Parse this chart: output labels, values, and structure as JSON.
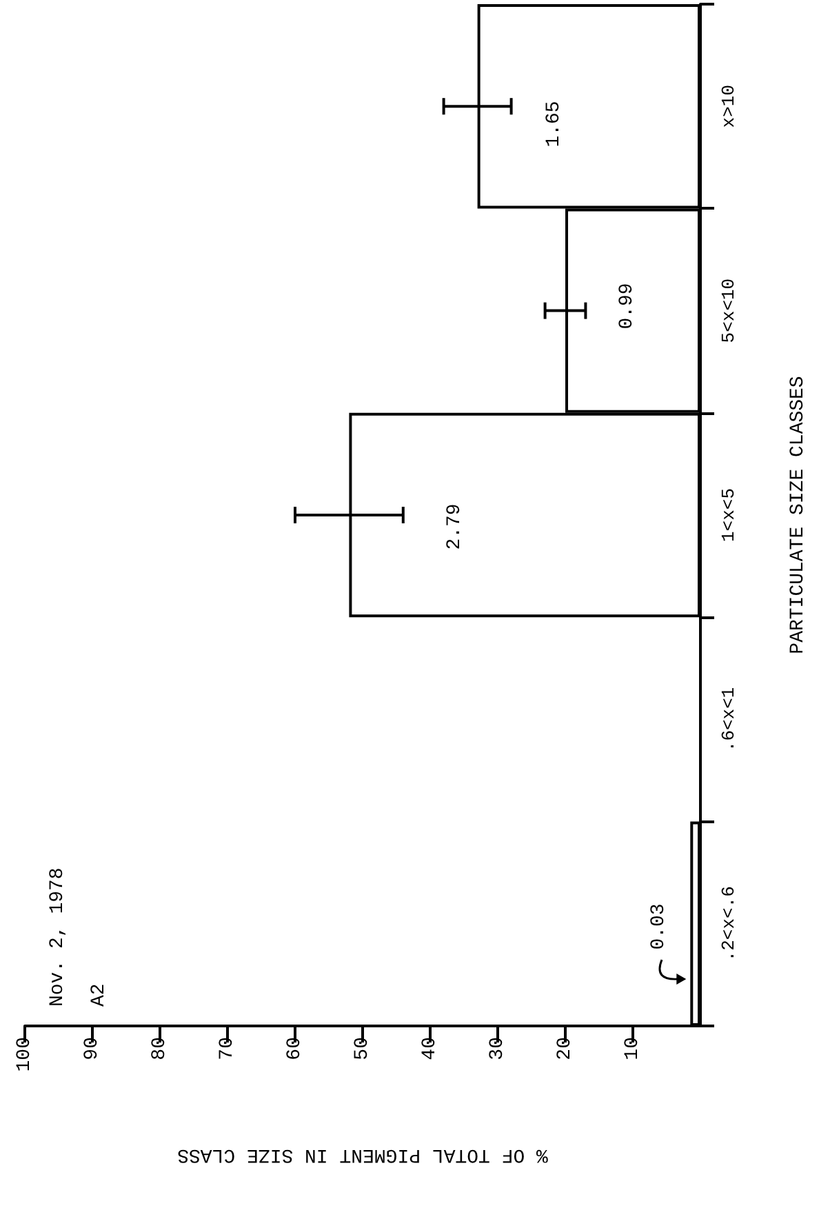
{
  "chart_data": {
    "type": "bar",
    "orientation": "horizontal",
    "xlabel": "% OF TOTAL PIGMENT IN SIZE CLASS",
    "ylabel": "PARTICULATE SIZE CLASSES",
    "categories": [
      "x>10",
      "5<x<10",
      "1<x<5",
      ".6<x<1",
      ".2<x<.6"
    ],
    "values": [
      33,
      20,
      52,
      0,
      1.5
    ],
    "errors": [
      [
        28,
        38
      ],
      [
        17,
        23
      ],
      [
        44,
        60
      ],
      null,
      null
    ],
    "color": "#000000",
    "xlim": [
      100,
      0
    ],
    "xticks": [
      100,
      90,
      80,
      70,
      60,
      50,
      40,
      30,
      20,
      10
    ],
    "grid": false,
    "annotations": [
      "Nov. 2, 1978",
      "A2",
      "1.65",
      "0.99",
      "2.79",
      "0.03"
    ]
  }
}
